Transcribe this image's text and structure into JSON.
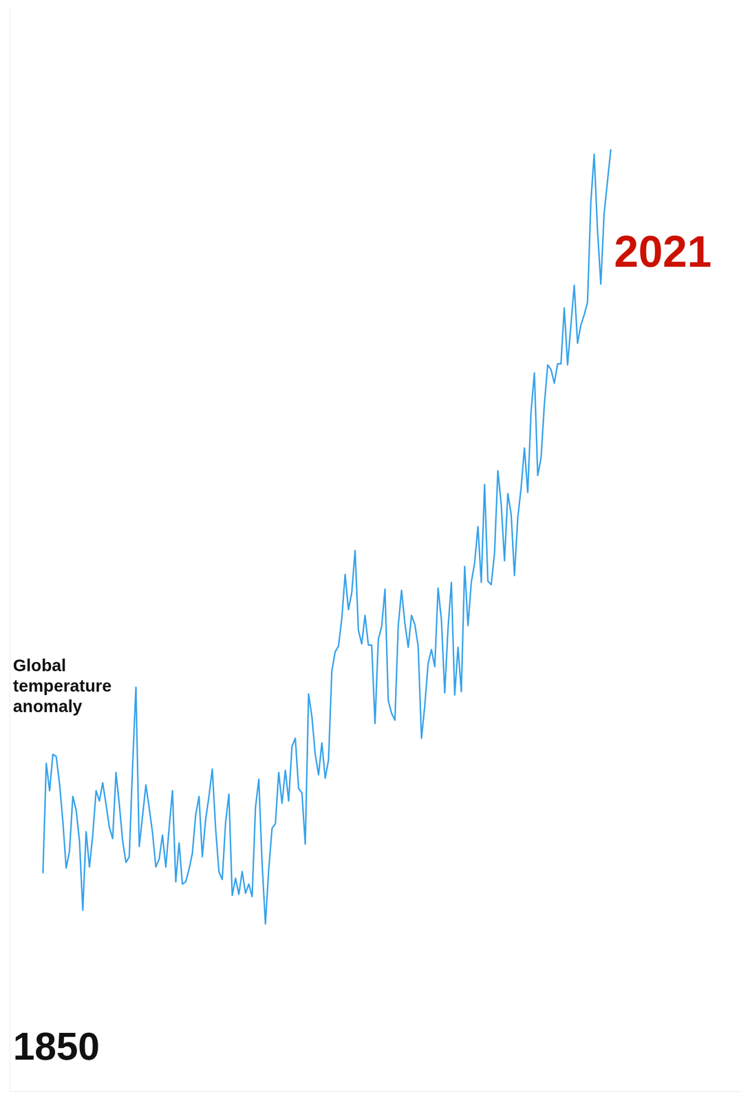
{
  "chart_data": {
    "type": "line",
    "x": [
      1850,
      1851,
      1852,
      1853,
      1854,
      1855,
      1856,
      1857,
      1858,
      1859,
      1860,
      1861,
      1862,
      1863,
      1864,
      1865,
      1866,
      1867,
      1868,
      1869,
      1870,
      1871,
      1872,
      1873,
      1874,
      1875,
      1876,
      1877,
      1878,
      1879,
      1880,
      1881,
      1882,
      1883,
      1884,
      1885,
      1886,
      1887,
      1888,
      1889,
      1890,
      1891,
      1892,
      1893,
      1894,
      1895,
      1896,
      1897,
      1898,
      1899,
      1900,
      1901,
      1902,
      1903,
      1904,
      1905,
      1906,
      1907,
      1908,
      1909,
      1910,
      1911,
      1912,
      1913,
      1914,
      1915,
      1916,
      1917,
      1918,
      1919,
      1920,
      1921,
      1922,
      1923,
      1924,
      1925,
      1926,
      1927,
      1928,
      1929,
      1930,
      1931,
      1932,
      1933,
      1934,
      1935,
      1936,
      1937,
      1938,
      1939,
      1940,
      1941,
      1942,
      1943,
      1944,
      1945,
      1946,
      1947,
      1948,
      1949,
      1950,
      1951,
      1952,
      1953,
      1954,
      1955,
      1956,
      1957,
      1958,
      1959,
      1960,
      1961,
      1962,
      1963,
      1964,
      1965,
      1966,
      1967,
      1968,
      1969,
      1970,
      1971,
      1972,
      1973,
      1974,
      1975,
      1976,
      1977,
      1978,
      1979,
      1980,
      1981,
      1982,
      1983,
      1984,
      1985,
      1986,
      1987,
      1988,
      1989,
      1990,
      1991,
      1992,
      1993,
      1994,
      1995,
      1996,
      1997,
      1998,
      1999,
      2000,
      2001,
      2002,
      2003,
      2004,
      2005,
      2006,
      2007,
      2008,
      2009,
      2010,
      2011,
      2012,
      2013,
      2014,
      2015,
      2016,
      2017,
      2018,
      2019,
      2020,
      2021
    ],
    "values": [
      -0.416,
      -0.224,
      -0.272,
      -0.208,
      -0.212,
      -0.26,
      -0.326,
      -0.408,
      -0.378,
      -0.282,
      -0.306,
      -0.36,
      -0.482,
      -0.344,
      -0.406,
      -0.35,
      -0.272,
      -0.29,
      -0.258,
      -0.296,
      -0.336,
      -0.356,
      -0.24,
      -0.296,
      -0.36,
      -0.398,
      -0.388,
      -0.228,
      -0.09,
      -0.37,
      -0.316,
      -0.262,
      -0.302,
      -0.346,
      -0.406,
      -0.392,
      -0.35,
      -0.406,
      -0.338,
      -0.272,
      -0.432,
      -0.364,
      -0.436,
      -0.432,
      -0.41,
      -0.382,
      -0.314,
      -0.282,
      -0.388,
      -0.322,
      -0.282,
      -0.234,
      -0.338,
      -0.414,
      -0.428,
      -0.328,
      -0.278,
      -0.456,
      -0.426,
      -0.454,
      -0.414,
      -0.452,
      -0.436,
      -0.458,
      -0.302,
      -0.252,
      -0.4,
      -0.506,
      -0.41,
      -0.338,
      -0.33,
      -0.24,
      -0.294,
      -0.236,
      -0.29,
      -0.194,
      -0.18,
      -0.268,
      -0.276,
      -0.366,
      -0.102,
      -0.142,
      -0.208,
      -0.244,
      -0.188,
      -0.25,
      -0.218,
      -0.062,
      -0.028,
      -0.018,
      0.03,
      0.108,
      0.046,
      0.076,
      0.15,
      0.01,
      -0.014,
      0.036,
      -0.016,
      -0.016,
      -0.154,
      -0.006,
      0.016,
      0.082,
      -0.114,
      -0.136,
      -0.148,
      0.018,
      0.08,
      0.022,
      -0.02,
      0.036,
      0.02,
      -0.018,
      -0.18,
      -0.122,
      -0.048,
      -0.024,
      -0.054,
      0.084,
      0.028,
      -0.1,
      0.014,
      0.094,
      -0.104,
      -0.02,
      -0.098,
      0.122,
      0.018,
      0.094,
      0.128,
      0.192,
      0.094,
      0.266,
      0.096,
      0.09,
      0.146,
      0.29,
      0.232,
      0.132,
      0.25,
      0.214,
      0.106,
      0.208,
      0.26,
      0.33,
      0.252,
      0.394,
      0.462,
      0.282,
      0.312,
      0.406,
      0.476,
      0.468,
      0.444,
      0.478,
      0.478,
      0.576,
      0.476,
      0.546,
      0.616,
      0.514,
      0.546,
      0.564,
      0.586,
      0.762,
      0.846,
      0.714,
      0.618,
      0.742,
      0.798,
      0.854
    ],
    "xlim": [
      1840,
      2060
    ],
    "ylim": [
      -0.8,
      1.1
    ],
    "tick_labels": false,
    "grid": false,
    "annotations": [
      {
        "text": "1850",
        "x": 1841,
        "y": -0.76,
        "color": "#111111"
      },
      {
        "text": "2021",
        "x": 2022,
        "y": 0.67,
        "color": "#cc1100"
      },
      {
        "text": "Global\ntemperature\nanomaly",
        "x": 1841,
        "y": -0.09,
        "color": "#111111"
      }
    ]
  }
}
